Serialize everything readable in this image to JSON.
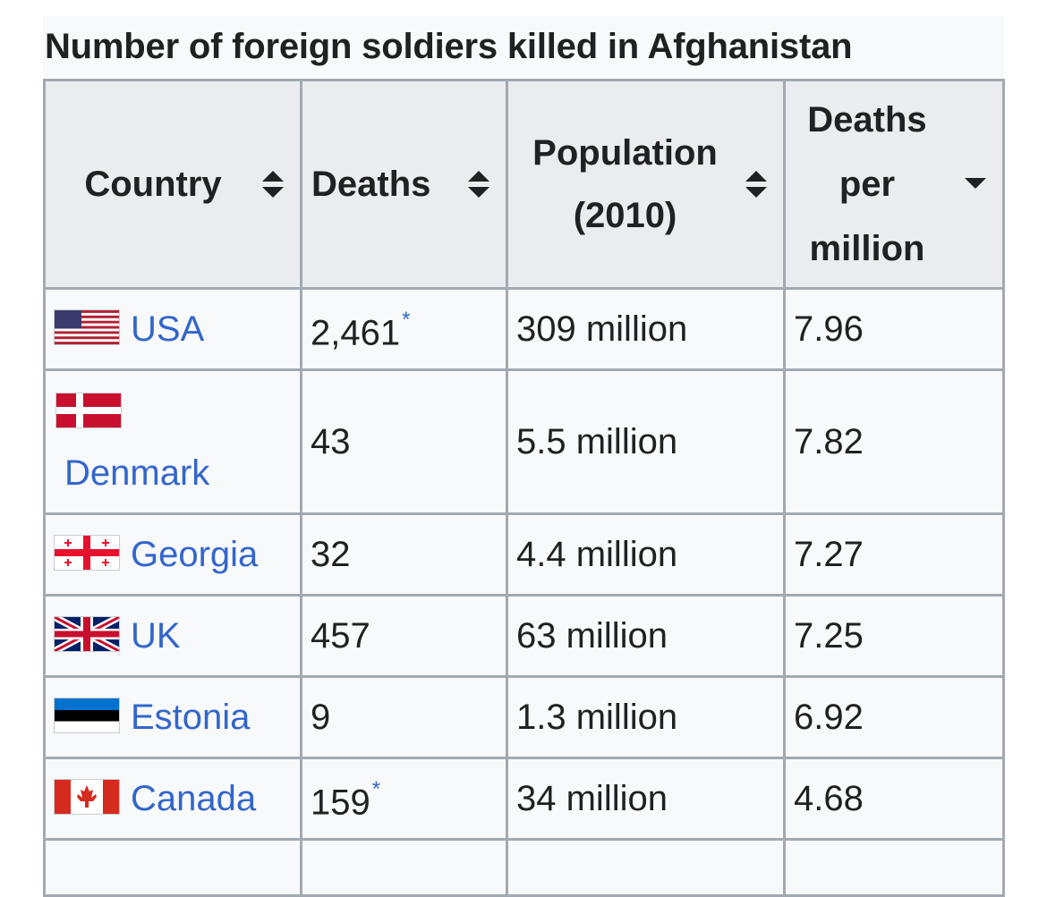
{
  "caption": "Number of foreign soldiers killed in Afghanistan",
  "headers": {
    "country": "Country",
    "deaths": "Deaths",
    "population_line1": "Population",
    "population_line2": "(2010)",
    "dpm_line1": "Deaths",
    "dpm_line2": "per",
    "dpm_line3": "million"
  },
  "rows": [
    {
      "flag_icon": "usa-flag-icon",
      "country": "USA",
      "deaths": "2,461",
      "note": "*",
      "population": "309 million",
      "per_million": "7.96"
    },
    {
      "flag_icon": "denmark-flag-icon",
      "country": "Denmark",
      "deaths": "43",
      "note": "",
      "population": "5.5 million",
      "per_million": "7.82"
    },
    {
      "flag_icon": "georgia-flag-icon",
      "country": "Georgia",
      "deaths": "32",
      "note": "",
      "population": "4.4 million",
      "per_million": "7.27"
    },
    {
      "flag_icon": "uk-flag-icon",
      "country": "UK",
      "deaths": "457",
      "note": "",
      "population": "63 million",
      "per_million": "7.25"
    },
    {
      "flag_icon": "estonia-flag-icon",
      "country": "Estonia",
      "deaths": "9",
      "note": "",
      "population": "1.3 million",
      "per_million": "6.92"
    },
    {
      "flag_icon": "canada-flag-icon",
      "country": "Canada",
      "deaths": "159",
      "note": "*",
      "population": "34 million",
      "per_million": "4.68"
    }
  ],
  "colors": {
    "link": "#3366cc",
    "header_bg": "#eaecf0",
    "cell_bg": "#f8f9fa",
    "border": "#a2a9b1"
  }
}
